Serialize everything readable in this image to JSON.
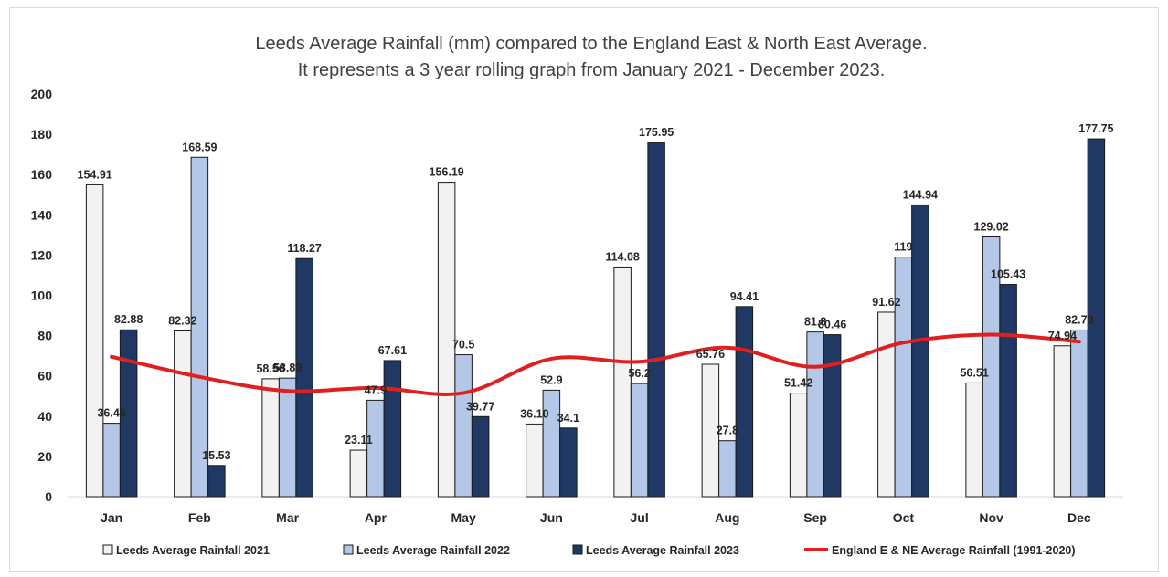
{
  "chart_data": {
    "type": "bar",
    "title_lines": [
      "Leeds Average Rainfall (mm) compared to the England East & North East Average.",
      "It represents a 3 year rolling graph from January 2021 - December 2023."
    ],
    "categories": [
      "Jan",
      "Feb",
      "Mar",
      "Apr",
      "May",
      "Jun",
      "Jul",
      "Aug",
      "Sep",
      "Oct",
      "Nov",
      "Dec"
    ],
    "ylim": [
      0,
      200
    ],
    "yticks": [
      0,
      20,
      40,
      60,
      80,
      100,
      120,
      140,
      160,
      180,
      200
    ],
    "gridlines": false,
    "legend_position": "bottom",
    "series": [
      {
        "name": "Leeds Average Rainfall 2021",
        "kind": "bar",
        "color": "#f2f2f2",
        "values": [
          154.91,
          82.32,
          58.56,
          23.11,
          156.19,
          36.1,
          114.08,
          65.76,
          51.42,
          91.62,
          56.51,
          74.94
        ],
        "labels": [
          "154.91",
          "82.32",
          "58.56",
          "23.11",
          "156.19",
          "36.10",
          "114.08",
          "65.76",
          "51.42",
          "91.62",
          "56.51",
          "74.94"
        ]
      },
      {
        "name": "Leeds Average Rainfall 2022",
        "kind": "bar",
        "color": "#b4c7e7",
        "values": [
          36.46,
          168.59,
          58.89,
          47.9,
          70.5,
          52.9,
          56.2,
          27.8,
          81.8,
          119,
          129.02,
          82.79
        ],
        "labels": [
          "36.46",
          "168.59",
          "58.89",
          "47.9",
          "70.5",
          "52.9",
          "56.2",
          "27.8",
          "81.8",
          "119",
          "129.02",
          "82.79"
        ]
      },
      {
        "name": "Leeds Average Rainfall 2023",
        "kind": "bar",
        "color": "#203864",
        "values": [
          82.88,
          15.53,
          118.27,
          67.61,
          39.77,
          34.1,
          175.95,
          94.41,
          80.46,
          144.94,
          105.43,
          177.75
        ],
        "labels": [
          "82.88",
          "15.53",
          "118.27",
          "67.61",
          "39.77",
          "34.1",
          "175.95",
          "94.41",
          "80.46",
          "144.94",
          "105.43",
          "177.75"
        ]
      },
      {
        "name": "England E & NE Average Rainfall (1991-2020)",
        "kind": "line",
        "color": "#e02020",
        "values": [
          69.5,
          59.5,
          52.5,
          54,
          51.5,
          68.5,
          67,
          74,
          64.5,
          76.5,
          80.5,
          77
        ]
      }
    ]
  }
}
